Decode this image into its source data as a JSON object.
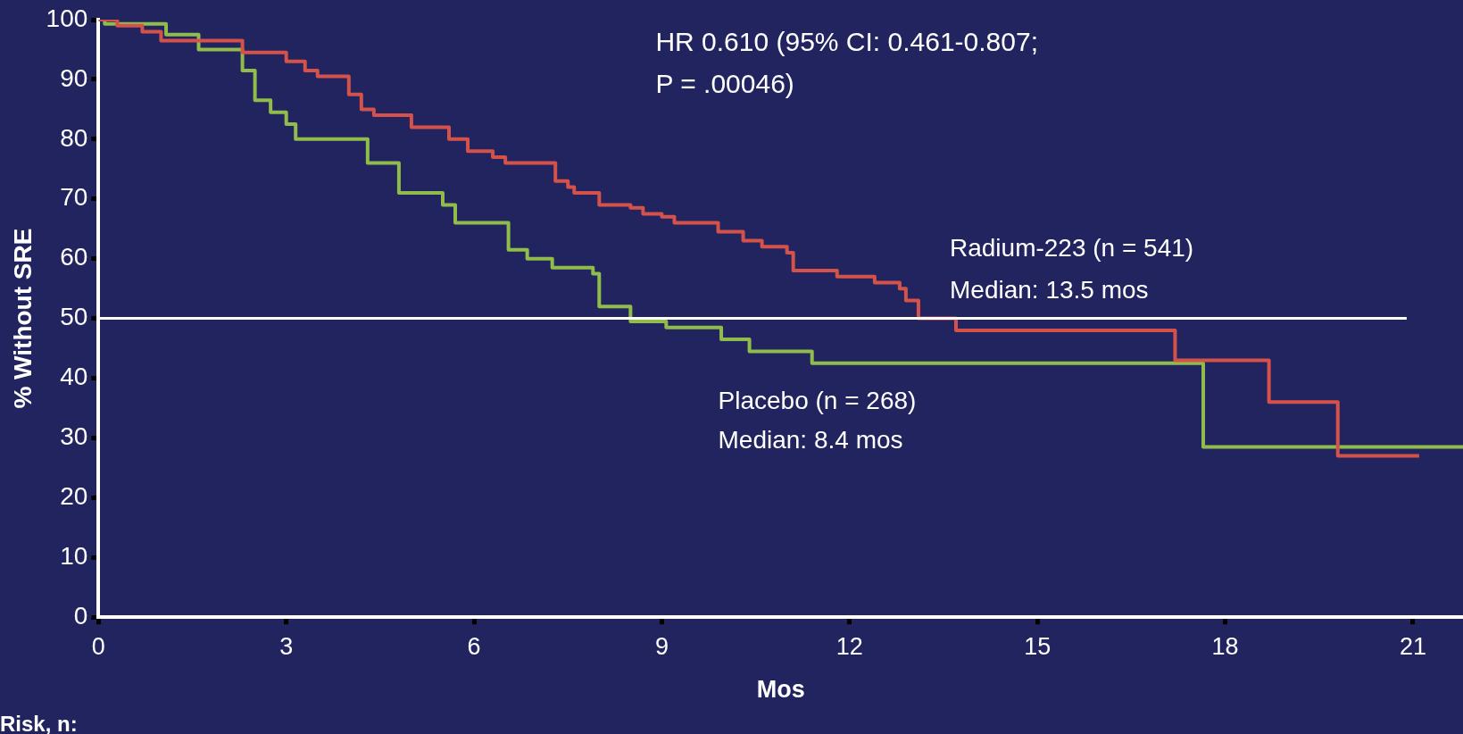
{
  "chart_data": {
    "type": "step",
    "xlabel": "Mos",
    "ylabel": "% Without SRE",
    "xlim": [
      0,
      21.8
    ],
    "xticks": [
      0,
      3,
      6,
      9,
      12,
      15,
      18,
      21
    ],
    "ylim": [
      0,
      100
    ],
    "yticks": [
      0,
      10,
      20,
      30,
      40,
      50,
      60,
      70,
      80,
      90,
      100
    ],
    "legend": false,
    "marker": "none",
    "line_style": "solid",
    "series": [
      {
        "name": "Radium-223 (n = 541)",
        "color": "#d4524a",
        "x": [
          0,
          0.3,
          0.7,
          1.0,
          2.3,
          3.0,
          3.3,
          3.5,
          4.0,
          4.2,
          4.4,
          5.0,
          5.6,
          5.9,
          6.3,
          6.5,
          7.3,
          7.5,
          7.6,
          8.0,
          8.5,
          8.7,
          9.0,
          9.2,
          9.9,
          10.3,
          10.6,
          11.0,
          11.1,
          11.8,
          12.4,
          12.8,
          12.9,
          13.1,
          13.7,
          17.2,
          18.7,
          19.8,
          21.1
        ],
        "values": [
          100,
          99,
          98,
          96.5,
          94.5,
          93,
          91.5,
          90.5,
          87.5,
          85,
          84,
          82,
          80,
          78,
          77,
          76,
          73,
          72,
          71,
          69,
          68.5,
          67.5,
          67,
          66,
          64.5,
          63,
          62,
          61,
          58,
          57,
          56,
          55,
          53,
          50,
          48,
          43,
          36,
          27,
          27
        ]
      },
      {
        "name": "Placebo (n = 268)",
        "color": "#8fbc4a",
        "x": [
          0,
          0.1,
          1.08,
          1.6,
          2.3,
          2.5,
          2.75,
          3.0,
          3.15,
          4.3,
          4.8,
          5.5,
          5.7,
          6.55,
          6.85,
          7.25,
          7.9,
          8.0,
          8.5,
          9.07,
          9.95,
          10.4,
          11.4,
          17.65,
          21.8
        ],
        "values": [
          100,
          99.3,
          97.5,
          95,
          91.5,
          86.5,
          84.5,
          82.5,
          80,
          76,
          71,
          69,
          66,
          61.5,
          60,
          58.5,
          57.5,
          52,
          49.5,
          48.5,
          46.5,
          44.5,
          42.5,
          28.5,
          28.5
        ]
      }
    ],
    "ref_lines": [
      {
        "axis": "y",
        "value": 50,
        "color": "#ffffff"
      }
    ],
    "annotations": [
      "HR 0.610 (95% CI: 0.461-0.807;",
      "P = .00046)",
      "Median: 13.5 mos",
      "Median: 8.4 mos",
      "Risk, n:"
    ]
  }
}
